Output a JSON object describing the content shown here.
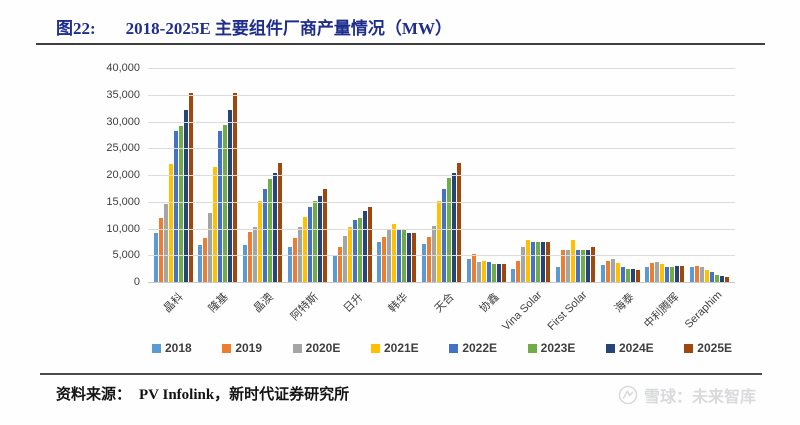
{
  "header": {
    "figure_label": "图22:",
    "title": "2018-2025E 主要组件厂商产量情况（MW）"
  },
  "chart_data": {
    "type": "bar",
    "title": "2018-2025E 主要组件厂商产量情况（MW）",
    "xlabel": "",
    "ylabel": "",
    "grid": true,
    "legend_position": "bottom",
    "y_axis": {
      "min": 0,
      "max": 40000,
      "step": 5000
    },
    "categories": [
      "晶科",
      "隆基",
      "晶澳",
      "阿特斯",
      "日升",
      "韩华",
      "天合",
      "协鑫",
      "Vina Solar",
      "First Solar",
      "海泰",
      "中利腾晖",
      "Seraphim"
    ],
    "series": [
      {
        "name": "2018",
        "color": "#5B9BD5",
        "values": [
          9100,
          7000,
          6900,
          6600,
          5000,
          7400,
          7100,
          4300,
          2500,
          2800,
          3200,
          2900,
          2900
        ]
      },
      {
        "name": "2019",
        "color": "#ED7D31",
        "values": [
          12000,
          8200,
          9400,
          8200,
          6500,
          8400,
          8400,
          5200,
          4000,
          6000,
          4000,
          3600,
          3000
        ]
      },
      {
        "name": "2020E",
        "color": "#A5A5A5",
        "values": [
          14600,
          12900,
          10300,
          10300,
          8600,
          10000,
          10500,
          3800,
          6500,
          5900,
          4300,
          3700,
          2900
        ]
      },
      {
        "name": "2021E",
        "color": "#FFC000",
        "values": [
          22000,
          21500,
          15200,
          12200,
          10300,
          10900,
          15200,
          4000,
          7800,
          7800,
          3500,
          3300,
          2200
        ]
      },
      {
        "name": "2022E",
        "color": "#4472C4",
        "values": [
          28300,
          28200,
          17300,
          14100,
          11500,
          10000,
          17300,
          3700,
          7400,
          6000,
          2800,
          2900,
          1800
        ]
      },
      {
        "name": "2023E",
        "color": "#70AD47",
        "values": [
          29200,
          29400,
          19300,
          15200,
          12000,
          9900,
          19400,
          3300,
          7400,
          6000,
          2400,
          2800,
          1400
        ]
      },
      {
        "name": "2024E",
        "color": "#264478",
        "values": [
          32200,
          32200,
          20400,
          16100,
          13300,
          9100,
          20400,
          3300,
          7400,
          6000,
          2400,
          3000,
          1200
        ]
      },
      {
        "name": "2025E",
        "color": "#9E480E",
        "values": [
          35300,
          35300,
          22200,
          17400,
          14100,
          9100,
          22200,
          3300,
          7400,
          6500,
          2200,
          3000,
          1000
        ]
      }
    ]
  },
  "footer": {
    "source_label": "资料来源：",
    "source_text": "PV Infolink，新时代证券研究所"
  },
  "watermark": {
    "text": "雪球：未来智库"
  }
}
